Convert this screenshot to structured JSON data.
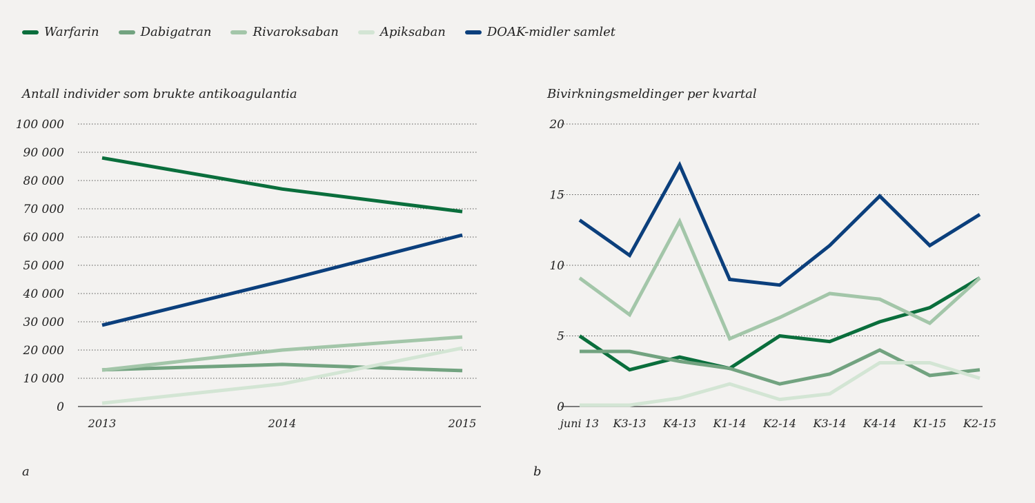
{
  "legend": [
    {
      "name": "Warfarin",
      "color": "#0a6e3c"
    },
    {
      "name": "Dabigatran",
      "color": "#72a380"
    },
    {
      "name": "Rivaroksaban",
      "color": "#a3c6a9"
    },
    {
      "name": "Apiksaban",
      "color": "#d3e5d4"
    },
    {
      "name": "DOAK-midler samlet",
      "color": "#0b3f7c"
    }
  ],
  "chart_data": [
    {
      "type": "line",
      "panel_label": "a",
      "title": "Antall individer som brukte antikoagulantia",
      "categories": [
        "2013",
        "2014",
        "2015"
      ],
      "ylim": [
        0,
        100000
      ],
      "yticks": [
        0,
        10000,
        20000,
        30000,
        40000,
        50000,
        60000,
        70000,
        80000,
        90000,
        100000
      ],
      "ytick_labels": [
        "0",
        "10 000",
        "20 000",
        "30 000",
        "40 000",
        "50 000",
        "60 000",
        "70 000",
        "80 000",
        "90 000",
        "100 000"
      ],
      "grid": "horizontal dotted",
      "series": [
        {
          "name": "Warfarin",
          "values": [
            88000,
            77000,
            69000
          ]
        },
        {
          "name": "Dabigatran",
          "values": [
            13000,
            14900,
            12700
          ]
        },
        {
          "name": "Rivaroksaban",
          "values": [
            12900,
            20000,
            24600
          ]
        },
        {
          "name": "Apiksaban",
          "values": [
            1200,
            8000,
            20700
          ]
        },
        {
          "name": "DOAK-midler samlet",
          "values": [
            28800,
            44400,
            60700
          ]
        }
      ]
    },
    {
      "type": "line",
      "panel_label": "b",
      "title": "Bivirkningsmeldinger per kvartal",
      "categories": [
        "juni 13",
        "K3-13",
        "K4-13",
        "K1-14",
        "K2-14",
        "K3-14",
        "K4-14",
        "K1-15",
        "K2-15"
      ],
      "ylim": [
        0,
        20
      ],
      "yticks": [
        0,
        5,
        10,
        15,
        20
      ],
      "ytick_labels": [
        "0",
        "5",
        "10",
        "15",
        "20"
      ],
      "grid": "horizontal dotted",
      "series": [
        {
          "name": "Warfarin",
          "values": [
            5.0,
            2.6,
            3.5,
            2.7,
            5.0,
            4.6,
            6.0,
            7.0,
            9.1
          ]
        },
        {
          "name": "Dabigatran",
          "values": [
            3.9,
            3.9,
            3.2,
            2.7,
            1.6,
            2.3,
            4.0,
            2.2,
            2.6
          ]
        },
        {
          "name": "Rivaroksaban",
          "values": [
            9.1,
            6.5,
            13.1,
            4.8,
            6.3,
            8.0,
            7.6,
            5.9,
            9.1
          ]
        },
        {
          "name": "Apiksaban",
          "values": [
            0.1,
            0.1,
            0.6,
            1.6,
            0.5,
            0.9,
            3.1,
            3.1,
            2.0
          ]
        },
        {
          "name": "DOAK-midler samlet",
          "values": [
            13.2,
            10.7,
            17.1,
            9.0,
            8.6,
            11.4,
            14.9,
            11.4,
            13.6
          ]
        }
      ]
    }
  ]
}
